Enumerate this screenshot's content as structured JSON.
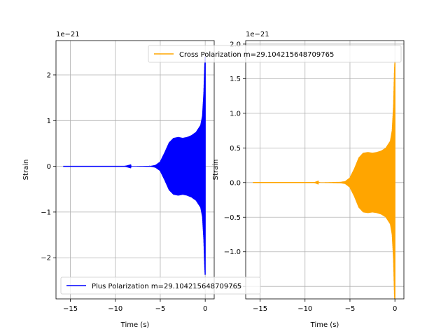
{
  "chart_data": [
    {
      "type": "line",
      "title": "",
      "xlabel": "Time (s)",
      "ylabel": "Strain",
      "offset_text": "1e−21",
      "xlim": [
        -16.6,
        1.0
      ],
      "ylim": [
        -2.9,
        2.75
      ],
      "xticks": [
        -15,
        -10,
        -5,
        0
      ],
      "xtick_labels": [
        "−15",
        "−10",
        "−5",
        "0"
      ],
      "yticks": [
        -2,
        -1,
        0,
        1,
        2
      ],
      "ytick_labels": [
        "−2",
        "−1",
        "0",
        "1",
        "2"
      ],
      "grid": true,
      "legend_position": "lower-left",
      "series": [
        {
          "name": "Plus Polarization m=29.104215648709765",
          "color": "#0000ff",
          "envelope": {
            "t": [
              -15.8,
              -9.0,
              -6.0,
              -5.5,
              -5.0,
              -4.5,
              -4.0,
              -3.5,
              -3.0,
              -2.5,
              -2.0,
              -1.5,
              -1.0,
              -0.5,
              -0.3,
              -0.15,
              -0.05,
              0.0
            ],
            "amp": [
              0.0,
              0.0,
              0.01,
              0.03,
              0.1,
              0.3,
              0.52,
              0.62,
              0.64,
              0.62,
              0.64,
              0.68,
              0.75,
              0.9,
              1.1,
              1.6,
              2.2,
              2.4
            ]
          }
        }
      ]
    },
    {
      "type": "line",
      "title": "",
      "xlabel": "Time (s)",
      "ylabel": "Strain",
      "offset_text": "1e−21",
      "xlim": [
        -16.6,
        1.0
      ],
      "ylim": [
        -1.68,
        2.05
      ],
      "xticks": [
        -15,
        -10,
        -5,
        0
      ],
      "xtick_labels": [
        "−15",
        "−10",
        "−5",
        "0"
      ],
      "yticks": [
        -1.5,
        -1.0,
        -0.5,
        0.0,
        0.5,
        1.0,
        1.5,
        2.0
      ],
      "ytick_labels": [
        "−1.5",
        "−1.0",
        "−0.5",
        "0.0",
        "0.5",
        "1.0",
        "1.5",
        "2.0"
      ],
      "grid": true,
      "legend_position": "upper-right",
      "series": [
        {
          "name": "Cross Polarization m=29.104215648709765",
          "color": "#ffa500",
          "envelope": {
            "t": [
              -15.8,
              -9.0,
              -6.0,
              -5.5,
              -5.0,
              -4.5,
              -4.0,
              -3.5,
              -3.0,
              -2.5,
              -2.0,
              -1.5,
              -1.0,
              -0.5,
              -0.3,
              -0.15,
              -0.05,
              0.0
            ],
            "amp": [
              0.0,
              0.0,
              0.01,
              0.02,
              0.07,
              0.2,
              0.36,
              0.43,
              0.44,
              0.43,
              0.44,
              0.46,
              0.5,
              0.6,
              0.75,
              1.1,
              1.6,
              1.75
            ]
          }
        }
      ]
    }
  ]
}
